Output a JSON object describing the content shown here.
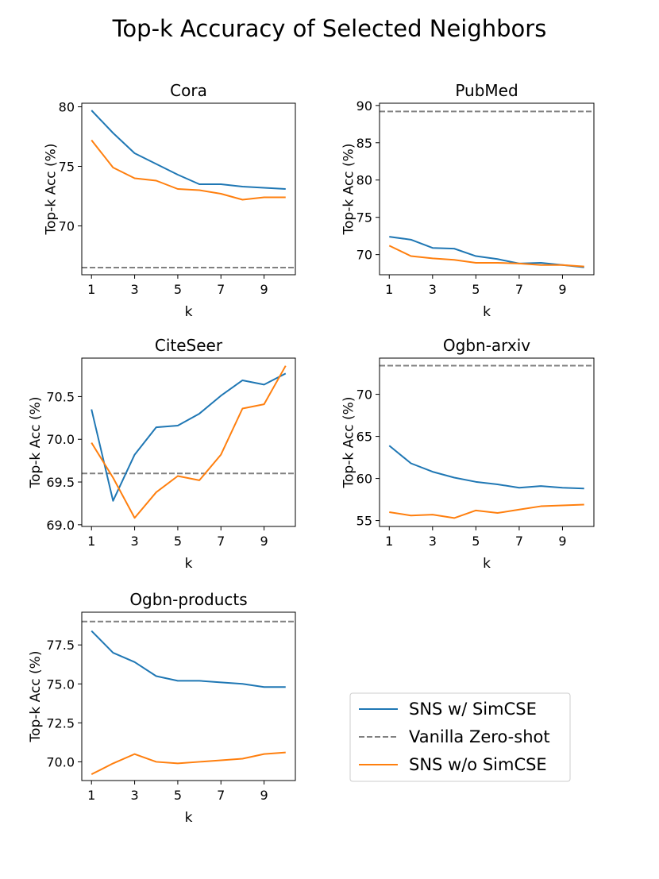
{
  "figure": {
    "suptitle": "Top-k Accuracy of Selected Neighbors"
  },
  "legend": {
    "placement": "lower-right",
    "entries": [
      {
        "label": "SNS w/ SimCSE",
        "color": "#1f77b4",
        "style": "solid"
      },
      {
        "label": "Vanilla Zero-shot",
        "color": "#808080",
        "style": "dashed"
      },
      {
        "label": "SNS w/o SimCSE",
        "color": "#ff7f0e",
        "style": "solid"
      }
    ]
  },
  "chart_data": [
    {
      "type": "line",
      "title": "Cora",
      "xlabel": "k",
      "ylabel": "Top-k Acc (%)",
      "x": [
        1,
        2,
        3,
        4,
        5,
        6,
        7,
        8,
        9,
        10
      ],
      "xticks": [
        "1",
        "3",
        "5",
        "7",
        "9"
      ],
      "xlim": [
        0.55,
        10.45
      ],
      "ylim": [
        65.9,
        80.3
      ],
      "yticks": [
        "70",
        "75",
        "80"
      ],
      "series": [
        {
          "name": "SNS w/ SimCSE",
          "color": "#1f77b4",
          "values": [
            79.7,
            77.8,
            76.1,
            75.2,
            74.3,
            73.5,
            73.5,
            73.3,
            73.2,
            73.1
          ]
        },
        {
          "name": "SNS w/o SimCSE",
          "color": "#ff7f0e",
          "values": [
            77.2,
            74.9,
            74.0,
            73.8,
            73.1,
            73.0,
            72.7,
            72.2,
            72.4,
            72.4
          ]
        }
      ],
      "baseline": {
        "name": "Vanilla Zero-shot",
        "color": "#808080",
        "value": 66.5
      }
    },
    {
      "type": "line",
      "title": "PubMed",
      "xlabel": "k",
      "ylabel": "Top-k Acc (%)",
      "x": [
        1,
        2,
        3,
        4,
        5,
        6,
        7,
        8,
        9,
        10
      ],
      "xticks": [
        "1",
        "3",
        "5",
        "7",
        "9"
      ],
      "xlim": [
        0.55,
        10.45
      ],
      "ylim": [
        67.3,
        90.3
      ],
      "yticks": [
        "70",
        "75",
        "80",
        "85",
        "90"
      ],
      "series": [
        {
          "name": "SNS w/ SimCSE",
          "color": "#1f77b4",
          "values": [
            72.4,
            72.0,
            70.9,
            70.8,
            69.8,
            69.4,
            68.8,
            68.9,
            68.6,
            68.3
          ]
        },
        {
          "name": "SNS w/o SimCSE",
          "color": "#ff7f0e",
          "values": [
            71.2,
            69.8,
            69.5,
            69.3,
            68.9,
            68.9,
            68.8,
            68.6,
            68.6,
            68.4
          ]
        }
      ],
      "baseline": {
        "name": "Vanilla Zero-shot",
        "color": "#808080",
        "value": 89.2
      }
    },
    {
      "type": "line",
      "title": "CiteSeer",
      "xlabel": "k",
      "ylabel": "Top-k Acc (%)",
      "x": [
        1,
        2,
        3,
        4,
        5,
        6,
        7,
        8,
        9,
        10
      ],
      "xticks": [
        "1",
        "3",
        "5",
        "7",
        "9"
      ],
      "xlim": [
        0.55,
        10.45
      ],
      "ylim": [
        68.98,
        70.95
      ],
      "yticks": [
        "69.0",
        "69.5",
        "70.0",
        "70.5"
      ],
      "series": [
        {
          "name": "SNS w/ SimCSE",
          "color": "#1f77b4",
          "values": [
            70.35,
            69.28,
            69.82,
            70.14,
            70.16,
            70.3,
            70.51,
            70.69,
            70.64,
            70.77
          ]
        },
        {
          "name": "SNS w/o SimCSE",
          "color": "#ff7f0e",
          "values": [
            69.96,
            69.55,
            69.08,
            69.38,
            69.57,
            69.52,
            69.82,
            70.36,
            70.41,
            70.86
          ]
        }
      ],
      "baseline": {
        "name": "Vanilla Zero-shot",
        "color": "#808080",
        "value": 69.6
      }
    },
    {
      "type": "line",
      "title": "Ogbn-arxiv",
      "xlabel": "k",
      "ylabel": "Top-k Acc (%)",
      "x": [
        1,
        2,
        3,
        4,
        5,
        6,
        7,
        8,
        9,
        10
      ],
      "xticks": [
        "1",
        "3",
        "5",
        "7",
        "9"
      ],
      "xlim": [
        0.55,
        10.45
      ],
      "ylim": [
        54.3,
        74.3
      ],
      "yticks": [
        "55",
        "60",
        "65",
        "70"
      ],
      "series": [
        {
          "name": "SNS w/ SimCSE",
          "color": "#1f77b4",
          "values": [
            63.9,
            61.8,
            60.8,
            60.1,
            59.6,
            59.3,
            58.9,
            59.1,
            58.9,
            58.8
          ]
        },
        {
          "name": "SNS w/o SimCSE",
          "color": "#ff7f0e",
          "values": [
            56.0,
            55.6,
            55.7,
            55.3,
            56.2,
            55.9,
            56.3,
            56.7,
            56.8,
            56.9
          ]
        }
      ],
      "baseline": {
        "name": "Vanilla Zero-shot",
        "color": "#808080",
        "value": 73.4
      }
    },
    {
      "type": "line",
      "title": "Ogbn-products",
      "xlabel": "k",
      "ylabel": "Top-k Acc (%)",
      "x": [
        1,
        2,
        3,
        4,
        5,
        6,
        7,
        8,
        9,
        10
      ],
      "xticks": [
        "1",
        "3",
        "5",
        "7",
        "9"
      ],
      "xlim": [
        0.55,
        10.45
      ],
      "ylim": [
        68.8,
        79.6
      ],
      "yticks": [
        "70.0",
        "72.5",
        "75.0",
        "77.5"
      ],
      "series": [
        {
          "name": "SNS w/ SimCSE",
          "color": "#1f77b4",
          "values": [
            78.4,
            77.0,
            76.4,
            75.5,
            75.2,
            75.2,
            75.1,
            75.0,
            74.8,
            74.8
          ]
        },
        {
          "name": "SNS w/o SimCSE",
          "color": "#ff7f0e",
          "values": [
            69.2,
            69.9,
            70.5,
            70.0,
            69.9,
            70.0,
            70.1,
            70.2,
            70.5,
            70.6
          ]
        }
      ],
      "baseline": {
        "name": "Vanilla Zero-shot",
        "color": "#808080",
        "value": 79.0
      }
    }
  ]
}
